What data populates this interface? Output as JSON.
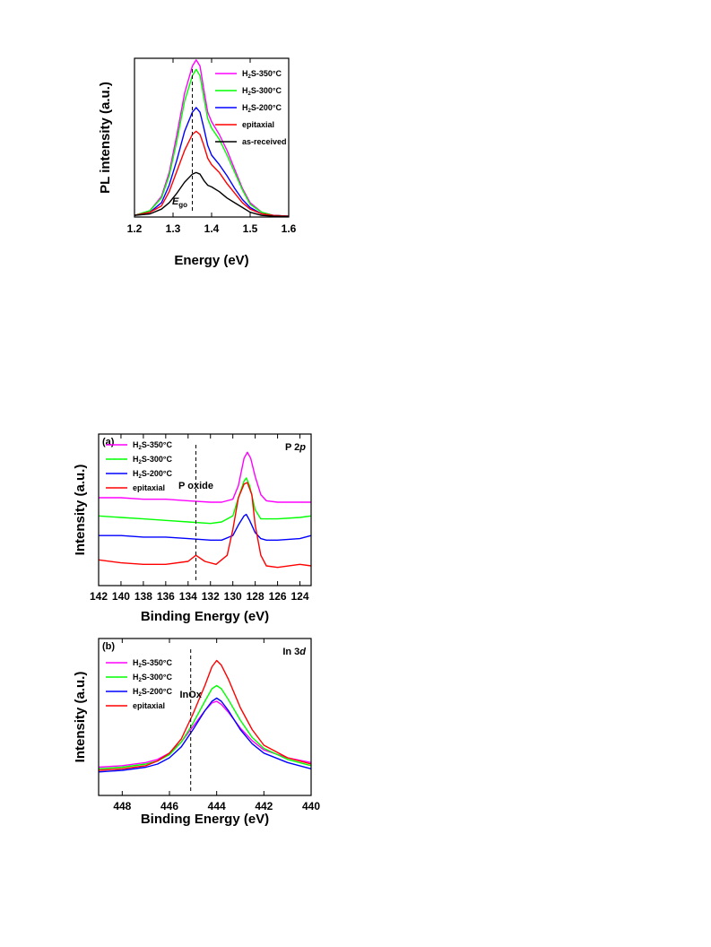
{
  "chart_data": [
    {
      "id": "pl",
      "type": "line",
      "xlabel": "Energy (eV)",
      "ylabel": "PL intensity (a.u.)",
      "xlim": [
        1.2,
        1.6
      ],
      "ylim": [
        0,
        1.0
      ],
      "xticks": [
        "1.2",
        "1.3",
        "1.4",
        "1.5",
        "1.6"
      ],
      "yticks_shown": false,
      "annotation": {
        "text": "E",
        "sub": "go",
        "x": 1.35
      },
      "legend_position": "top-right",
      "series": [
        {
          "name": "H2S-350°C",
          "legend": {
            "pre": "H",
            "sub": "2",
            "post": "S-350°C"
          },
          "color": "#ff00ff",
          "x": [
            1.2,
            1.24,
            1.27,
            1.29,
            1.31,
            1.33,
            1.35,
            1.36,
            1.37,
            1.38,
            1.39,
            1.4,
            1.42,
            1.44,
            1.46,
            1.48,
            1.5,
            1.53,
            1.56,
            1.6
          ],
          "y": [
            0.01,
            0.04,
            0.13,
            0.28,
            0.52,
            0.78,
            0.95,
            0.99,
            0.95,
            0.8,
            0.66,
            0.6,
            0.52,
            0.42,
            0.3,
            0.18,
            0.09,
            0.03,
            0.01,
            0.005
          ]
        },
        {
          "name": "H2S-300°C",
          "legend": {
            "pre": "H",
            "sub": "2",
            "post": "S-300°C"
          },
          "color": "#00ff00",
          "x": [
            1.2,
            1.24,
            1.27,
            1.29,
            1.31,
            1.33,
            1.35,
            1.36,
            1.37,
            1.38,
            1.39,
            1.4,
            1.42,
            1.44,
            1.46,
            1.48,
            1.5,
            1.53,
            1.56,
            1.6
          ],
          "y": [
            0.01,
            0.04,
            0.12,
            0.26,
            0.48,
            0.73,
            0.89,
            0.93,
            0.89,
            0.75,
            0.62,
            0.56,
            0.49,
            0.39,
            0.28,
            0.17,
            0.08,
            0.03,
            0.01,
            0.005
          ]
        },
        {
          "name": "H2S-200°C",
          "legend": {
            "pre": "H",
            "sub": "2",
            "post": "S-200°C"
          },
          "color": "#0000ff",
          "x": [
            1.2,
            1.24,
            1.27,
            1.29,
            1.31,
            1.33,
            1.35,
            1.36,
            1.37,
            1.38,
            1.39,
            1.4,
            1.42,
            1.44,
            1.46,
            1.48,
            1.5,
            1.53,
            1.56,
            1.6
          ],
          "y": [
            0.01,
            0.03,
            0.09,
            0.2,
            0.36,
            0.54,
            0.66,
            0.69,
            0.66,
            0.56,
            0.45,
            0.39,
            0.33,
            0.26,
            0.18,
            0.11,
            0.06,
            0.02,
            0.01,
            0.005
          ]
        },
        {
          "name": "epitaxial",
          "legend": {
            "pre": "epitaxial",
            "sub": "",
            "post": ""
          },
          "color": "#ff0000",
          "x": [
            1.2,
            1.24,
            1.27,
            1.29,
            1.31,
            1.33,
            1.35,
            1.36,
            1.37,
            1.38,
            1.39,
            1.4,
            1.42,
            1.44,
            1.46,
            1.48,
            1.5,
            1.53,
            1.56,
            1.6
          ],
          "y": [
            0.01,
            0.03,
            0.07,
            0.16,
            0.29,
            0.42,
            0.52,
            0.54,
            0.52,
            0.45,
            0.37,
            0.33,
            0.28,
            0.21,
            0.15,
            0.09,
            0.05,
            0.02,
            0.01,
            0.005
          ]
        },
        {
          "name": "as-received",
          "legend": {
            "pre": "as-received",
            "sub": "",
            "post": ""
          },
          "color": "#000000",
          "x": [
            1.2,
            1.24,
            1.27,
            1.29,
            1.31,
            1.33,
            1.35,
            1.36,
            1.37,
            1.38,
            1.39,
            1.4,
            1.42,
            1.44,
            1.46,
            1.48,
            1.5,
            1.53,
            1.56,
            1.6
          ],
          "y": [
            0.01,
            0.02,
            0.05,
            0.09,
            0.15,
            0.22,
            0.27,
            0.28,
            0.27,
            0.23,
            0.2,
            0.19,
            0.16,
            0.12,
            0.09,
            0.06,
            0.03,
            0.01,
            0.005,
            0.003
          ]
        }
      ]
    },
    {
      "id": "p2p",
      "type": "line",
      "panel_label": "(a)",
      "region_label": {
        "pre": "P 2",
        "italic": "p"
      },
      "xlabel": "Binding Energy (eV)",
      "ylabel": "Intensity (a.u.)",
      "xlim": [
        142,
        123
      ],
      "ylim": [
        0,
        1.0
      ],
      "xticks": [
        "142",
        "140",
        "138",
        "136",
        "134",
        "132",
        "130",
        "128",
        "126",
        "124"
      ],
      "yticks_shown": false,
      "annotation": {
        "text": "P oxide",
        "x": 133.3
      },
      "legend_position": "top-left",
      "series": [
        {
          "name": "H2S-350°C",
          "legend": {
            "pre": "H",
            "sub": "2",
            "post": "S-350°C"
          },
          "color": "#ff00ff",
          "x": [
            142,
            140,
            138,
            136,
            134,
            132,
            131,
            130,
            129.5,
            129,
            128.7,
            128.4,
            128,
            127.5,
            127,
            126,
            124,
            123
          ],
          "y": [
            0.58,
            0.58,
            0.57,
            0.57,
            0.56,
            0.55,
            0.55,
            0.57,
            0.66,
            0.84,
            0.88,
            0.84,
            0.72,
            0.6,
            0.56,
            0.55,
            0.55,
            0.55
          ]
        },
        {
          "name": "H2S-300°C",
          "legend": {
            "pre": "H",
            "sub": "2",
            "post": "S-300°C"
          },
          "color": "#00ff00",
          "x": [
            142,
            140,
            138,
            136,
            134,
            132,
            131,
            130,
            129.5,
            129,
            128.8,
            128.5,
            128,
            127.5,
            127,
            126,
            124,
            123
          ],
          "y": [
            0.46,
            0.45,
            0.44,
            0.43,
            0.42,
            0.41,
            0.42,
            0.46,
            0.58,
            0.69,
            0.71,
            0.66,
            0.5,
            0.44,
            0.44,
            0.44,
            0.45,
            0.46
          ]
        },
        {
          "name": "H2S-200°C",
          "legend": {
            "pre": "H",
            "sub": "2",
            "post": "S-200°C"
          },
          "color": "#0000ff",
          "x": [
            142,
            140,
            138,
            136,
            134,
            132,
            131,
            130,
            129.5,
            129,
            128.8,
            128.5,
            128,
            127.5,
            127,
            126,
            124,
            123
          ],
          "y": [
            0.33,
            0.33,
            0.32,
            0.32,
            0.31,
            0.3,
            0.3,
            0.33,
            0.4,
            0.46,
            0.47,
            0.43,
            0.35,
            0.31,
            0.3,
            0.3,
            0.31,
            0.33
          ]
        },
        {
          "name": "epitaxial",
          "legend": {
            "pre": "epitaxial",
            "sub": "",
            "post": ""
          },
          "color": "#ff0000",
          "x": [
            142,
            140,
            138,
            136,
            134,
            133.3,
            132.5,
            131.5,
            130.5,
            130,
            129.5,
            129,
            128.7,
            128.3,
            128,
            127.5,
            127,
            126,
            124,
            123
          ],
          "y": [
            0.17,
            0.15,
            0.14,
            0.14,
            0.16,
            0.2,
            0.16,
            0.14,
            0.2,
            0.37,
            0.58,
            0.67,
            0.68,
            0.6,
            0.4,
            0.2,
            0.13,
            0.12,
            0.14,
            0.13
          ]
        }
      ]
    },
    {
      "id": "in3d",
      "type": "line",
      "panel_label": "(b)",
      "region_label": {
        "pre": "In 3",
        "italic": "d"
      },
      "xlabel": "Binding Energy (eV)",
      "ylabel": "Intensity (a.u.)",
      "xlim": [
        449,
        440
      ],
      "ylim": [
        0,
        1.0
      ],
      "xticks": [
        "448",
        "446",
        "444",
        "442",
        "440"
      ],
      "yticks_shown": false,
      "annotation": {
        "text": "InOx",
        "x": 445.1
      },
      "legend_position": "top-left",
      "series": [
        {
          "name": "H2S-350°C",
          "legend": {
            "pre": "H",
            "sub": "2",
            "post": "S-350°C"
          },
          "color": "#ff00ff",
          "x": [
            449,
            448,
            447,
            446.5,
            446,
            445.5,
            445,
            444.5,
            444.2,
            444,
            443.8,
            443.5,
            443,
            442.5,
            442,
            441,
            440
          ],
          "y": [
            0.18,
            0.19,
            0.21,
            0.23,
            0.27,
            0.34,
            0.44,
            0.54,
            0.59,
            0.6,
            0.58,
            0.53,
            0.43,
            0.35,
            0.29,
            0.24,
            0.21
          ]
        },
        {
          "name": "H2S-300°C",
          "legend": {
            "pre": "H",
            "sub": "2",
            "post": "S-300°C"
          },
          "color": "#00ff00",
          "x": [
            449,
            448,
            447,
            446.5,
            446,
            445.5,
            445,
            444.5,
            444.2,
            444,
            443.8,
            443.5,
            443,
            442.5,
            442,
            441,
            440
          ],
          "y": [
            0.17,
            0.18,
            0.2,
            0.22,
            0.26,
            0.34,
            0.46,
            0.6,
            0.68,
            0.7,
            0.68,
            0.61,
            0.48,
            0.37,
            0.3,
            0.23,
            0.19
          ]
        },
        {
          "name": "H2S-200°C",
          "legend": {
            "pre": "H",
            "sub": "2",
            "post": "S-200°C"
          },
          "color": "#0000ff",
          "x": [
            449,
            448,
            447,
            446.5,
            446,
            445.5,
            445,
            444.5,
            444.2,
            444,
            443.8,
            443.5,
            443,
            442.5,
            442,
            441,
            440
          ],
          "y": [
            0.15,
            0.16,
            0.18,
            0.2,
            0.24,
            0.31,
            0.42,
            0.54,
            0.6,
            0.62,
            0.6,
            0.54,
            0.42,
            0.33,
            0.27,
            0.21,
            0.17
          ]
        },
        {
          "name": "epitaxial",
          "legend": {
            "pre": "epitaxial",
            "sub": "",
            "post": ""
          },
          "color": "#ff0000",
          "x": [
            449,
            448,
            447,
            446.5,
            446,
            445.5,
            445,
            444.5,
            444.2,
            444,
            443.8,
            443.5,
            443,
            442.5,
            442,
            441,
            440
          ],
          "y": [
            0.16,
            0.17,
            0.19,
            0.22,
            0.27,
            0.36,
            0.52,
            0.7,
            0.82,
            0.86,
            0.83,
            0.74,
            0.56,
            0.42,
            0.32,
            0.24,
            0.2
          ]
        }
      ]
    }
  ]
}
